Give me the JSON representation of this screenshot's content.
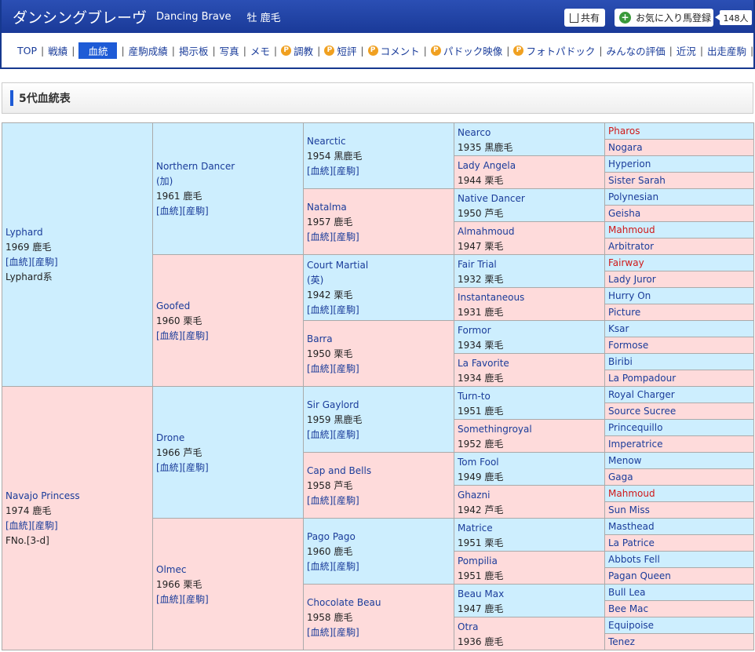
{
  "header": {
    "name_kana": "ダンシングブレーヴ",
    "name_en": "Dancing Brave",
    "sex_color": "牡 鹿毛",
    "share_label": "共有",
    "fav_label": "お気に入り馬登録",
    "fav_count": "148人"
  },
  "nav": [
    {
      "label": "TOP"
    },
    {
      "label": "戦績"
    },
    {
      "label": "血統",
      "active": true
    },
    {
      "label": "産駒成績"
    },
    {
      "label": "掲示板"
    },
    {
      "label": "写真"
    },
    {
      "label": "メモ"
    },
    {
      "label": "調教",
      "premium": true
    },
    {
      "label": "短評",
      "premium": true
    },
    {
      "label": "コメント",
      "premium": true
    },
    {
      "label": "パドック映像",
      "premium": true
    },
    {
      "label": "フォトパドック",
      "premium": true
    },
    {
      "label": "みんなの評価"
    },
    {
      "label": "近況"
    },
    {
      "label": "出走産駒"
    }
  ],
  "section_title": "5代血統表",
  "links_label": "[血統][産駒]",
  "gen1": [
    {
      "name": "Lyphard",
      "year": "1969 鹿毛",
      "links": true,
      "extra": "Lyphard系"
    },
    {
      "name": "Navajo Princess",
      "year": "1974 鹿毛",
      "links": true,
      "extra": "FNo.[3-d]"
    }
  ],
  "gen2": [
    {
      "name": "Northern Dancer",
      "sub": "(加)",
      "year": "1961 鹿毛",
      "links": true
    },
    {
      "name": "Goofed",
      "year": "1960 栗毛",
      "links": true
    },
    {
      "name": "Drone",
      "year": "1966 芦毛",
      "links": true
    },
    {
      "name": "Olmec",
      "year": "1966 栗毛",
      "links": true
    }
  ],
  "gen3": [
    {
      "name": "Nearctic",
      "year": "1954 黒鹿毛",
      "links": true
    },
    {
      "name": "Natalma",
      "year": "1957 鹿毛",
      "links": true
    },
    {
      "name": "Court Martial",
      "sub": "(英)",
      "year": "1942 栗毛",
      "links": true
    },
    {
      "name": "Barra",
      "year": "1950 栗毛",
      "links": true
    },
    {
      "name": "Sir Gaylord",
      "year": "1959 黒鹿毛",
      "links": true
    },
    {
      "name": "Cap and Bells",
      "year": "1958 芦毛",
      "links": true
    },
    {
      "name": "Pago Pago",
      "year": "1960 鹿毛",
      "links": true
    },
    {
      "name": "Chocolate Beau",
      "year": "1958 鹿毛",
      "links": true
    }
  ],
  "gen4": [
    {
      "name": "Nearco",
      "year": "1935 黒鹿毛"
    },
    {
      "name": "Lady Angela",
      "year": "1944 栗毛"
    },
    {
      "name": "Native Dancer",
      "year": "1950 芦毛"
    },
    {
      "name": "Almahmoud",
      "year": "1947 栗毛"
    },
    {
      "name": "Fair Trial",
      "year": "1932 栗毛"
    },
    {
      "name": "Instantaneous",
      "year": "1931 鹿毛"
    },
    {
      "name": "Formor",
      "year": "1934 栗毛"
    },
    {
      "name": "La Favorite",
      "year": "1934 鹿毛"
    },
    {
      "name": "Turn-to",
      "year": "1951 鹿毛"
    },
    {
      "name": "Somethingroyal",
      "year": "1952 鹿毛"
    },
    {
      "name": "Tom Fool",
      "year": "1949 鹿毛"
    },
    {
      "name": "Ghazni",
      "year": "1942 芦毛"
    },
    {
      "name": "Matrice",
      "year": "1951 栗毛"
    },
    {
      "name": "Pompilia",
      "year": "1951 鹿毛"
    },
    {
      "name": "Beau Max",
      "year": "1947 鹿毛"
    },
    {
      "name": "Otra",
      "year": "1936 鹿毛"
    }
  ],
  "gen5": [
    {
      "name": "Pharos",
      "red": true
    },
    {
      "name": "Nogara"
    },
    {
      "name": "Hyperion"
    },
    {
      "name": "Sister Sarah"
    },
    {
      "name": "Polynesian"
    },
    {
      "name": "Geisha"
    },
    {
      "name": "Mahmoud",
      "red": true
    },
    {
      "name": "Arbitrator"
    },
    {
      "name": "Fairway",
      "red": true
    },
    {
      "name": "Lady Juror"
    },
    {
      "name": "Hurry On"
    },
    {
      "name": "Picture"
    },
    {
      "name": "Ksar"
    },
    {
      "name": "Formose"
    },
    {
      "name": "Biribi"
    },
    {
      "name": "La Pompadour"
    },
    {
      "name": "Royal Charger"
    },
    {
      "name": "Source Sucree"
    },
    {
      "name": "Princequillo"
    },
    {
      "name": "Imperatrice"
    },
    {
      "name": "Menow"
    },
    {
      "name": "Gaga"
    },
    {
      "name": "Mahmoud",
      "red": true
    },
    {
      "name": "Sun Miss"
    },
    {
      "name": "Masthead"
    },
    {
      "name": "La Patrice"
    },
    {
      "name": "Abbots Fell"
    },
    {
      "name": "Pagan Queen"
    },
    {
      "name": "Bull Lea"
    },
    {
      "name": "Bee Mac"
    },
    {
      "name": "Equipoise"
    },
    {
      "name": "Tenez"
    }
  ],
  "colors": {
    "male_bg": "#cdeefe",
    "female_bg": "#fedbdb",
    "link": "#1a3c9a",
    "highlight": "#d01818",
    "header_bg": "#1a3a98"
  }
}
